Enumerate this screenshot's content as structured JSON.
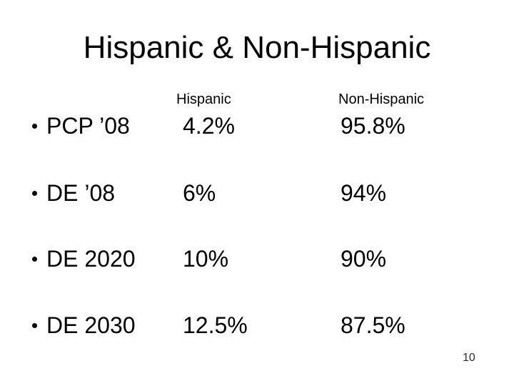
{
  "slide": {
    "title": "Hispanic & Non-Hispanic",
    "page_number": "10",
    "background_color": "#ffffff",
    "text_color": "#000000"
  },
  "table": {
    "columns": [
      {
        "label": "Hispanic"
      },
      {
        "label": "Non-Hispanic"
      }
    ],
    "rows": [
      {
        "label": "PCP ’08",
        "hispanic": "4.2%",
        "non_hispanic": "95.8%"
      },
      {
        "label": "DE ’08",
        "hispanic": "6%",
        "non_hispanic": "94%"
      },
      {
        "label": "DE 2020",
        "hispanic": "10%",
        "non_hispanic": "90%"
      },
      {
        "label": "DE 2030",
        "hispanic": "12.5%",
        "non_hispanic": "87.5%"
      }
    ]
  }
}
